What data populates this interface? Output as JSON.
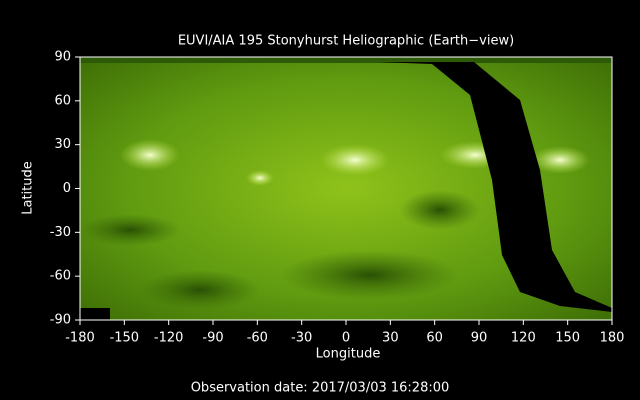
{
  "chart_data": {
    "type": "image",
    "title": "EUVI/AIA 195 Stonyhurst Heliographic (Earth−view)",
    "x_label": "Longitude",
    "y_label": "Latitude",
    "footer": "Observation date: 2017/03/03 16:28:00",
    "xlim": [
      -180,
      180
    ],
    "ylim": [
      -90,
      90
    ],
    "xticks": [
      -180,
      -150,
      -120,
      -90,
      -60,
      -30,
      0,
      30,
      60,
      90,
      120,
      150,
      180
    ],
    "yticks": [
      -90,
      -60,
      -30,
      0,
      30,
      60,
      90
    ]
  }
}
